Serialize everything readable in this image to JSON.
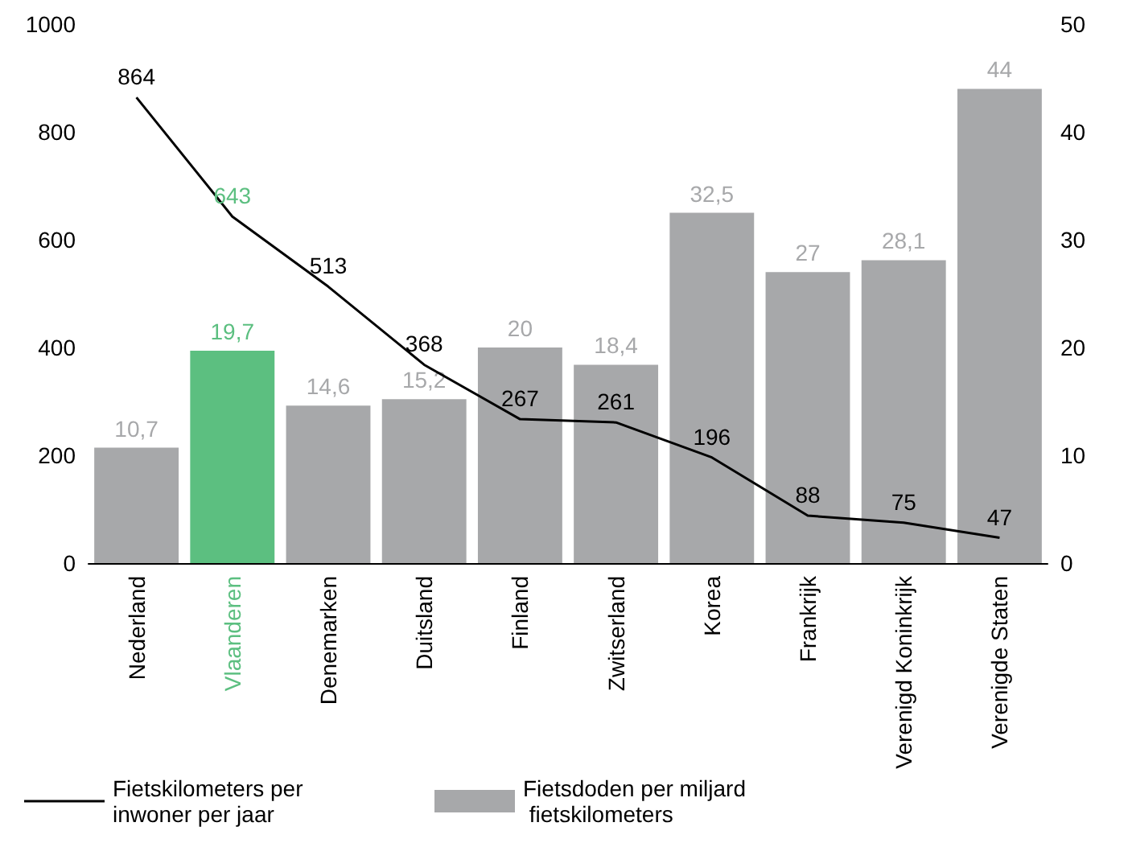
{
  "chart_data": {
    "type": "bar",
    "categories": [
      "Nederland",
      "Vlaanderen",
      "Denemarken",
      "Duitsland",
      "Finland",
      "Zwitserland",
      "Korea",
      "Frankrijk",
      "Verenigd Koninkrijk",
      "Verenigde Staten"
    ],
    "series": [
      {
        "name": "Fietskilometers per inwoner per jaar",
        "type": "line",
        "axis": "y",
        "color": "#000000",
        "values": [
          864,
          643,
          513,
          368,
          267,
          261,
          196,
          88,
          75,
          47
        ],
        "value_labels": [
          "864",
          "643",
          "513",
          "368",
          "267",
          "261",
          "196",
          "88",
          "75",
          "47"
        ]
      },
      {
        "name": "Fietsdoden per miljard fietskilometers",
        "axis": "y2",
        "color": "#a7a8aa",
        "colors": [
          "#a7a8aa",
          "#5cbf80",
          "#a7a8aa",
          "#a7a8aa",
          "#a7a8aa",
          "#a7a8aa",
          "#a7a8aa",
          "#a7a8aa",
          "#a7a8aa",
          "#a7a8aa"
        ],
        "values": [
          10.7,
          19.7,
          14.6,
          15.2,
          20,
          18.4,
          32.5,
          27,
          28.1,
          44
        ],
        "value_labels": [
          "10,7",
          "19,7",
          "14,6",
          "15,2",
          "20",
          "18,4",
          "32,5",
          "27",
          "28,1",
          "44"
        ]
      }
    ],
    "ylim": [
      0,
      1000
    ],
    "yticks": [
      0,
      200,
      400,
      600,
      800,
      1000
    ],
    "y2lim": [
      0,
      50
    ],
    "y2ticks": [
      0,
      10,
      20,
      30,
      40,
      50
    ],
    "grid": false,
    "legend": "bottom left",
    "marker": "none"
  }
}
